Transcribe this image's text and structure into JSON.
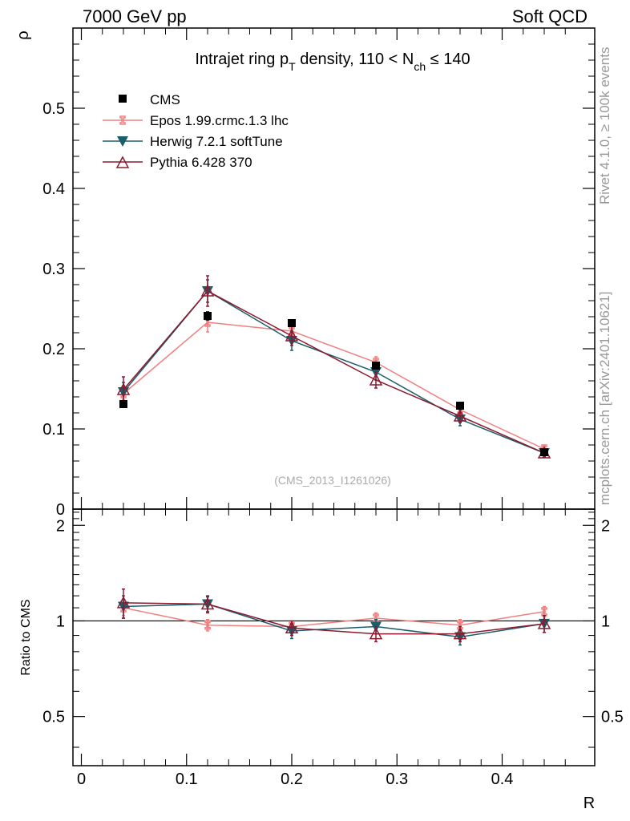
{
  "header": {
    "left": "7000 GeV pp",
    "right": "Soft QCD"
  },
  "side_labels": {
    "rivet": "Rivet 4.1.0, ≥ 100k events",
    "mcplots": "mcplots.cern.ch [arXiv:2401.10621]"
  },
  "chart_data": {
    "type": "line",
    "title": {
      "main": "Intrajet ring p",
      "sub_T": "T",
      "mid": " density, 110 < N",
      "sub_ch": "ch",
      "end": " ≤ 140"
    },
    "analysis_id": "(CMS_2013_I1261026)",
    "xlabel": "R",
    "ylabel": "ρ",
    "ratio_ylabel": "Ratio to CMS",
    "xlim": [
      -0.008,
      0.488
    ],
    "ylim": [
      0,
      0.6
    ],
    "ratio_ylim": [
      0.35,
      2.25
    ],
    "x_ticks": [
      "0",
      "0.1",
      "0.2",
      "0.3",
      "0.4"
    ],
    "x_tick_values": [
      0,
      0.1,
      0.2,
      0.3,
      0.4
    ],
    "y_ticks": [
      "0",
      "0.1",
      "0.2",
      "0.3",
      "0.4",
      "0.5"
    ],
    "y_tick_values": [
      0,
      0.1,
      0.2,
      0.3,
      0.4,
      0.5
    ],
    "ratio_ticks": [
      "0.5",
      "1",
      "2"
    ],
    "ratio_tick_values": [
      0.5,
      1,
      2
    ],
    "x": [
      0.04,
      0.12,
      0.2,
      0.28,
      0.36,
      0.44
    ],
    "data": {
      "name": "CMS",
      "values": [
        0.131,
        0.241,
        0.232,
        0.179,
        0.129,
        0.071
      ],
      "errors": [
        0.004,
        0.005,
        0.004,
        0.004,
        0.003,
        0.002
      ]
    },
    "series": [
      {
        "name": "Epos 1.99.crmc.1.3 lhc",
        "color": "#f08080",
        "marker": "open-cross",
        "values": [
          0.144,
          0.233,
          0.222,
          0.183,
          0.124,
          0.075
        ],
        "errors": [
          0.008,
          0.012,
          0.008,
          0.007,
          0.006,
          0.004
        ],
        "ratio": [
          1.1,
          0.97,
          0.96,
          1.02,
          0.97,
          1.07
        ],
        "ratio_errors": [
          0.06,
          0.04,
          0.04,
          0.04,
          0.04,
          0.04
        ]
      },
      {
        "name": "Herwig 7.2.1 softTune",
        "color": "#1b5e6b",
        "marker": "filled-down-triangle",
        "values": [
          0.146,
          0.272,
          0.21,
          0.171,
          0.112,
          0.07
        ],
        "errors": [
          0.012,
          0.014,
          0.012,
          0.01,
          0.008,
          0.005
        ],
        "ratio": [
          1.11,
          1.13,
          0.93,
          0.96,
          0.89,
          0.98
        ],
        "ratio_errors": [
          0.09,
          0.06,
          0.05,
          0.05,
          0.05,
          0.06
        ]
      },
      {
        "name": "Pythia 6.428 370",
        "color": "#8b1a2e",
        "marker": "open-up-triangle",
        "values": [
          0.149,
          0.272,
          0.216,
          0.161,
          0.116,
          0.07
        ],
        "errors": [
          0.016,
          0.019,
          0.012,
          0.01,
          0.008,
          0.005
        ],
        "ratio": [
          1.14,
          1.13,
          0.95,
          0.91,
          0.91,
          0.98
        ],
        "ratio_errors": [
          0.12,
          0.07,
          0.05,
          0.05,
          0.05,
          0.06
        ]
      }
    ]
  }
}
